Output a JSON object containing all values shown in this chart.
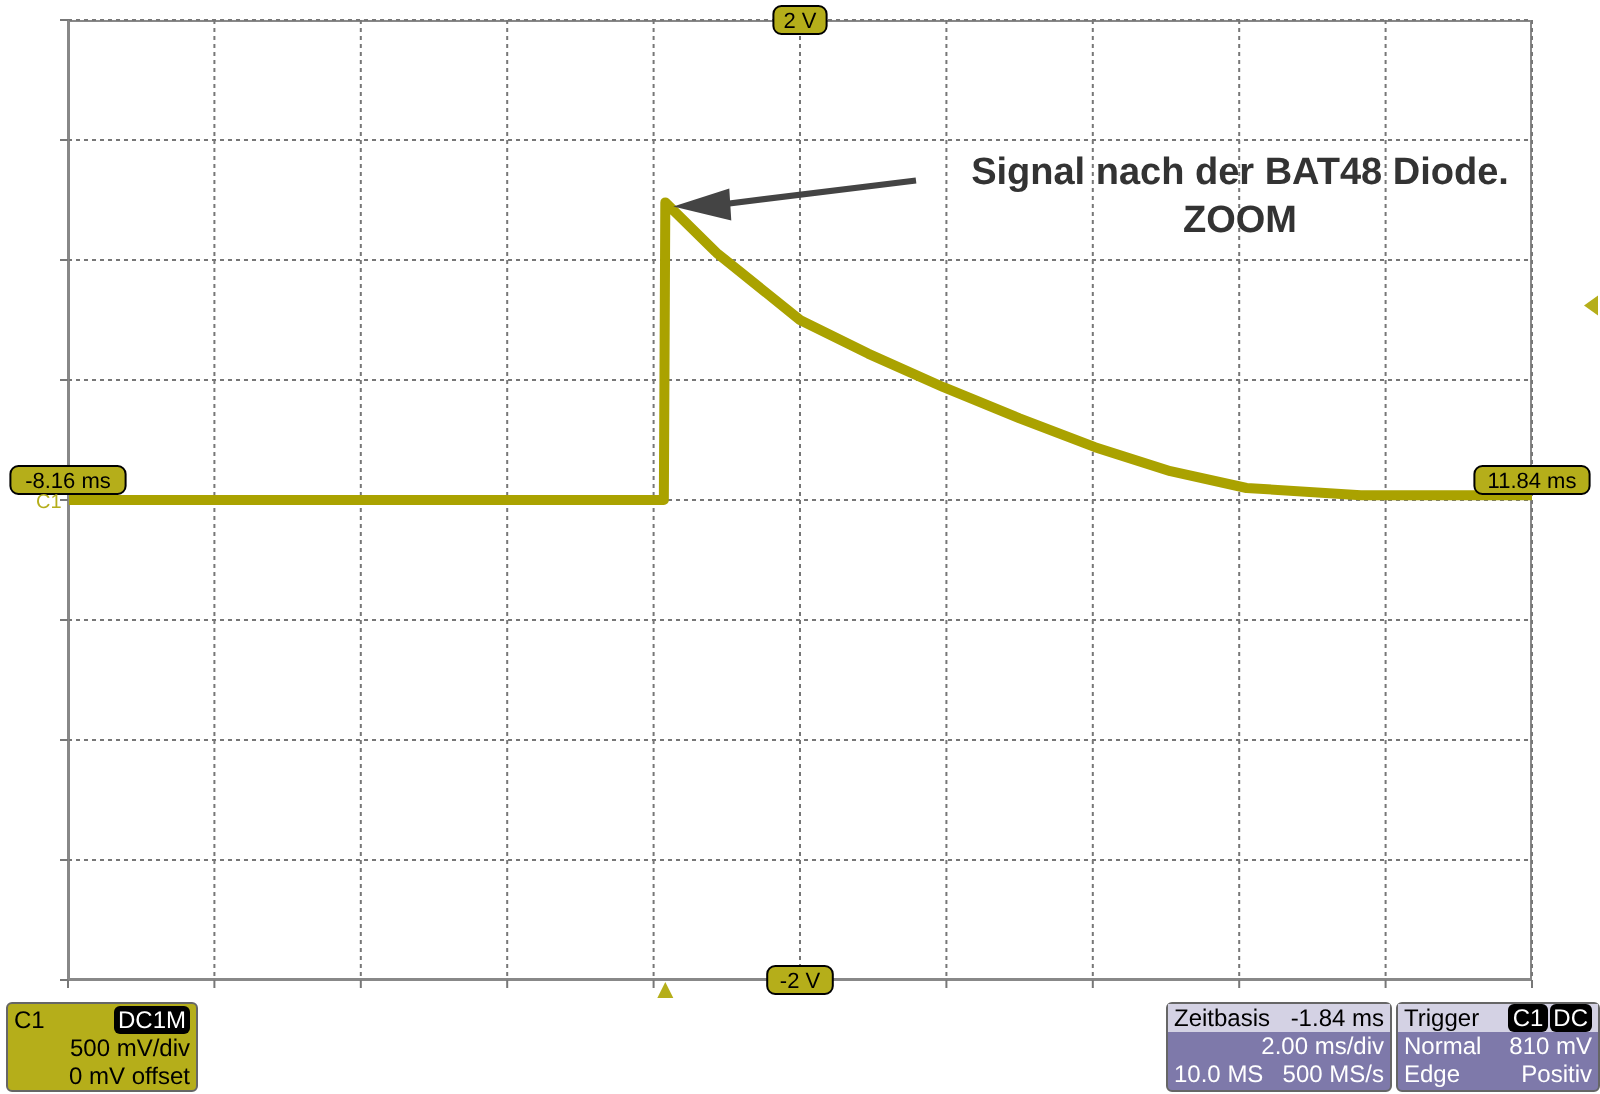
{
  "chart_data": {
    "type": "line",
    "x": [
      -8.16,
      -0.02,
      0,
      0.7,
      1.84,
      2.77,
      3.8,
      4.84,
      5.87,
      6.9,
      7.94,
      9.5,
      11.84
    ],
    "series": [
      {
        "color": "#aaa200",
        "values": [
          0,
          0,
          1.24,
          1.03,
          0.75,
          0.61,
          0.47,
          0.34,
          0.22,
          0.12,
          0.05,
          0.02,
          0.02
        ]
      }
    ],
    "xlim": [
      -8.16,
      11.84
    ],
    "xticks": [
      {
        "value": -8.16,
        "label": "-8.16 ms"
      },
      {
        "value": -6.16,
        "label": null
      },
      {
        "value": -4.16,
        "label": null
      },
      {
        "value": -2.16,
        "label": null
      },
      {
        "value": -0.16,
        "label": null
      },
      {
        "value": 1.84,
        "label": null
      },
      {
        "value": 3.84,
        "label": null
      },
      {
        "value": 5.84,
        "label": null
      },
      {
        "value": 7.84,
        "label": null
      },
      {
        "value": 9.84,
        "label": null
      },
      {
        "value": 11.84,
        "label": "11.84 ms"
      }
    ],
    "ylim": [
      -2,
      2
    ],
    "yticks": [
      {
        "value": -2,
        "label": "-2 V"
      },
      {
        "value": -1.5,
        "label": null
      },
      {
        "value": -1,
        "label": null
      },
      {
        "value": -0.5,
        "label": null
      },
      {
        "value": 0,
        "label": null
      },
      {
        "value": 0.5,
        "label": null
      },
      {
        "value": 1,
        "label": null
      },
      {
        "value": 1.5,
        "label": null
      },
      {
        "value": 2,
        "label": "2 V"
      }
    ],
    "grid": true,
    "legend": false,
    "marker": "none",
    "line_style": "solid",
    "annotations": [
      "Signal nach der BAT48 Diode. ZOOM",
      "C1",
      "DC1M",
      "500 mV/div",
      "0 mV offset",
      "Zeitbasis",
      "-1.84 ms",
      "2.00 ms/div",
      "10.0 MS",
      "500 MS/s",
      "Trigger",
      "C1",
      "DC",
      "Normal",
      "810 mV",
      "Edge",
      "Positiv",
      "C1"
    ]
  }
}
